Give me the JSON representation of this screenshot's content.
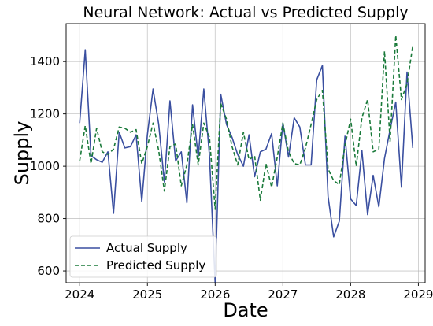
{
  "chart_data": {
    "type": "line",
    "title": "Neural Network: Actual vs Predicted Supply",
    "xlabel": "Date",
    "ylabel": "Supply",
    "xlim": [
      2023.8,
      2029.1
    ],
    "ylim": [
      555,
      1545
    ],
    "x_ticks": [
      "2024",
      "2025",
      "2026",
      "2027",
      "2028",
      "2029"
    ],
    "y_ticks": [
      "600",
      "800",
      "1000",
      "1200",
      "1400"
    ],
    "grid": true,
    "legend_position": "lower-left",
    "x": [
      2024.0,
      2024.083,
      2024.167,
      2024.25,
      2024.333,
      2024.417,
      2024.5,
      2024.583,
      2024.667,
      2024.75,
      2024.833,
      2024.917,
      2025.0,
      2025.083,
      2025.167,
      2025.25,
      2025.333,
      2025.417,
      2025.5,
      2025.583,
      2025.667,
      2025.75,
      2025.833,
      2025.917,
      2026.0,
      2026.083,
      2026.167,
      2026.25,
      2026.333,
      2026.417,
      2026.5,
      2026.583,
      2026.667,
      2026.75,
      2026.833,
      2026.917,
      2027.0,
      2027.083,
      2027.167,
      2027.25,
      2027.333,
      2027.417,
      2027.5,
      2027.583,
      2027.667,
      2027.75,
      2027.833,
      2027.917,
      2028.0,
      2028.083,
      2028.167,
      2028.25,
      2028.333,
      2028.417,
      2028.5,
      2028.583,
      2028.667,
      2028.75,
      2028.833,
      2028.917
    ],
    "series": [
      {
        "name": "Actual Supply",
        "color": "#3a4fa0",
        "style": "solid",
        "values": [
          1165,
          1445,
          1040,
          1025,
          1015,
          1055,
          820,
          1130,
          1070,
          1075,
          1120,
          865,
          1120,
          1295,
          1160,
          940,
          1250,
          1020,
          1055,
          860,
          1235,
          1035,
          1295,
          1040,
          555,
          1275,
          1160,
          1110,
          1045,
          1000,
          1120,
          960,
          1055,
          1065,
          1125,
          925,
          1165,
          1035,
          1185,
          1150,
          1005,
          1005,
          1330,
          1385,
          885,
          730,
          790,
          1115,
          875,
          850,
          1060,
          815,
          965,
          845,
          1030,
          1140,
          1245,
          920,
          1360,
          1070
        ]
      },
      {
        "name": "Predicted Supply",
        "color": "#1a7a3a",
        "style": "dashed",
        "values": [
          1020,
          1155,
          1010,
          1145,
          1055,
          1045,
          1065,
          1150,
          1145,
          1130,
          1140,
          1010,
          1075,
          1165,
          1060,
          905,
          1075,
          1085,
          925,
          1005,
          1160,
          1005,
          1165,
          1110,
          835,
          1240,
          1180,
          1075,
          1005,
          1130,
          1025,
          1040,
          870,
          1010,
          920,
          1035,
          1165,
          1055,
          1010,
          1005,
          1070,
          1160,
          1255,
          1290,
          990,
          945,
          930,
          1080,
          1180,
          1000,
          1185,
          1255,
          1055,
          1065,
          1440,
          1095,
          1500,
          1255,
          1315,
          1460
        ]
      }
    ]
  }
}
